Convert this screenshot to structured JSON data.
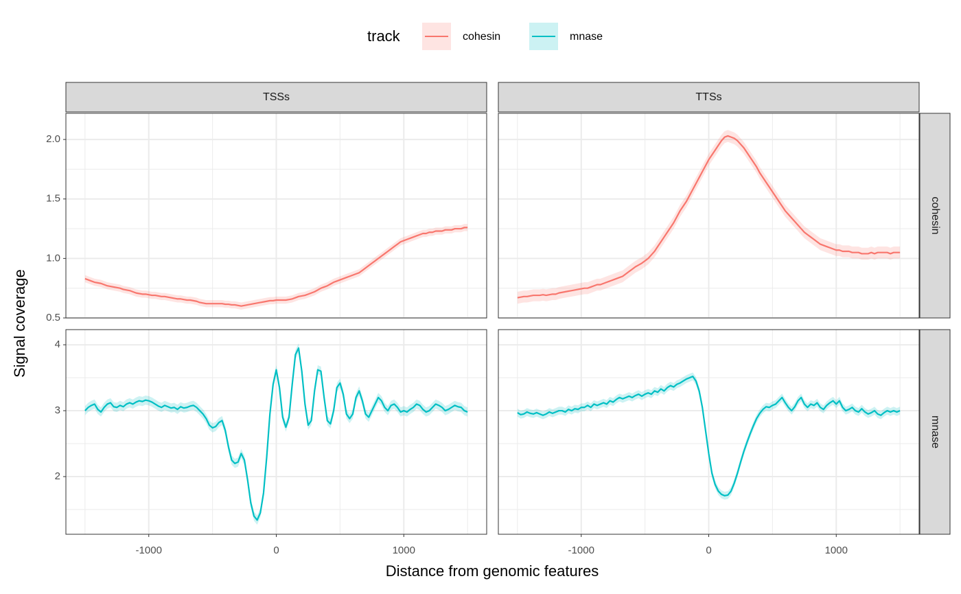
{
  "chart_data": {
    "type": "line",
    "legend_title": "track",
    "x_label": "Distance from genomic features",
    "y_label": "Signal coverage",
    "facets": [
      "TSSs",
      "TTSs"
    ],
    "x": [
      -1500,
      -1475,
      -1450,
      -1425,
      -1400,
      -1375,
      -1350,
      -1325,
      -1300,
      -1275,
      -1250,
      -1225,
      -1200,
      -1175,
      -1150,
      -1125,
      -1100,
      -1075,
      -1050,
      -1025,
      -1000,
      -975,
      -950,
      -925,
      -900,
      -875,
      -850,
      -825,
      -800,
      -775,
      -750,
      -725,
      -700,
      -675,
      -650,
      -625,
      -600,
      -575,
      -550,
      -525,
      -500,
      -475,
      -450,
      -425,
      -400,
      -375,
      -350,
      -325,
      -300,
      -275,
      -250,
      -225,
      -200,
      -175,
      -150,
      -125,
      -100,
      -75,
      -50,
      -25,
      0,
      25,
      50,
      75,
      100,
      125,
      150,
      175,
      200,
      225,
      250,
      275,
      300,
      325,
      350,
      375,
      400,
      425,
      450,
      475,
      500,
      525,
      550,
      575,
      600,
      625,
      650,
      675,
      700,
      725,
      750,
      775,
      800,
      825,
      850,
      875,
      900,
      925,
      950,
      975,
      1000,
      1025,
      1050,
      1075,
      1100,
      1125,
      1150,
      1175,
      1200,
      1225,
      1250,
      1275,
      1300,
      1325,
      1350,
      1375,
      1400,
      1425,
      1450,
      1475,
      1500
    ],
    "xlim": [
      -1650,
      1650
    ],
    "xticks": [
      -1000,
      0,
      1000
    ],
    "x_minor": [
      -1500,
      -500,
      500,
      1500
    ],
    "grid": true,
    "series": [
      {
        "name": "cohesin",
        "color": "#F8766D",
        "ylim": [
          0.5,
          2.22
        ],
        "yticks": [
          0.5,
          {
            "value": 1,
            "label": "1.0"
          },
          1.5,
          {
            "value": 2,
            "label": "2.0"
          }
        ],
        "y_minor": [
          0.75,
          1.25,
          1.75
        ],
        "se": [
          0.03,
          0.05
        ],
        "values": [
          [
            0.83,
            0.82,
            0.81,
            0.8,
            0.795,
            0.79,
            0.78,
            0.77,
            0.765,
            0.76,
            0.755,
            0.75,
            0.74,
            0.735,
            0.73,
            0.72,
            0.71,
            0.705,
            0.7,
            0.7,
            0.695,
            0.69,
            0.69,
            0.685,
            0.68,
            0.68,
            0.675,
            0.67,
            0.665,
            0.66,
            0.66,
            0.655,
            0.65,
            0.65,
            0.645,
            0.64,
            0.63,
            0.625,
            0.62,
            0.62,
            0.62,
            0.62,
            0.62,
            0.62,
            0.615,
            0.615,
            0.61,
            0.61,
            0.605,
            0.6,
            0.605,
            0.61,
            0.615,
            0.62,
            0.625,
            0.63,
            0.635,
            0.64,
            0.645,
            0.645,
            0.65,
            0.65,
            0.65,
            0.65,
            0.655,
            0.66,
            0.67,
            0.68,
            0.685,
            0.69,
            0.7,
            0.71,
            0.72,
            0.735,
            0.75,
            0.76,
            0.77,
            0.785,
            0.8,
            0.81,
            0.82,
            0.83,
            0.84,
            0.85,
            0.86,
            0.87,
            0.88,
            0.9,
            0.92,
            0.94,
            0.96,
            0.98,
            1.0,
            1.02,
            1.04,
            1.06,
            1.08,
            1.1,
            1.12,
            1.14,
            1.15,
            1.16,
            1.17,
            1.18,
            1.19,
            1.2,
            1.21,
            1.21,
            1.22,
            1.22,
            1.23,
            1.23,
            1.23,
            1.24,
            1.24,
            1.24,
            1.25,
            1.25,
            1.25,
            1.26,
            1.26
          ],
          [
            0.67,
            0.675,
            0.68,
            0.68,
            0.685,
            0.69,
            0.69,
            0.69,
            0.695,
            0.69,
            0.695,
            0.7,
            0.7,
            0.71,
            0.715,
            0.72,
            0.725,
            0.73,
            0.735,
            0.74,
            0.745,
            0.75,
            0.75,
            0.76,
            0.77,
            0.78,
            0.78,
            0.79,
            0.8,
            0.81,
            0.82,
            0.83,
            0.84,
            0.85,
            0.87,
            0.89,
            0.91,
            0.93,
            0.945,
            0.96,
            0.98,
            1.0,
            1.03,
            1.06,
            1.1,
            1.14,
            1.18,
            1.22,
            1.26,
            1.3,
            1.35,
            1.4,
            1.44,
            1.48,
            1.53,
            1.58,
            1.63,
            1.68,
            1.73,
            1.78,
            1.83,
            1.87,
            1.91,
            1.95,
            1.99,
            2.02,
            2.03,
            2.02,
            2.01,
            1.99,
            1.96,
            1.93,
            1.89,
            1.85,
            1.81,
            1.77,
            1.72,
            1.68,
            1.64,
            1.6,
            1.56,
            1.52,
            1.48,
            1.44,
            1.4,
            1.37,
            1.34,
            1.31,
            1.28,
            1.25,
            1.22,
            1.2,
            1.18,
            1.16,
            1.14,
            1.12,
            1.11,
            1.1,
            1.09,
            1.08,
            1.07,
            1.07,
            1.06,
            1.06,
            1.06,
            1.05,
            1.05,
            1.05,
            1.04,
            1.04,
            1.04,
            1.05,
            1.04,
            1.05,
            1.05,
            1.05,
            1.05,
            1.04,
            1.05,
            1.05,
            1.05
          ]
        ]
      },
      {
        "name": "mnase",
        "color": "#00BFC4",
        "ylim": [
          1.125,
          4.23
        ],
        "yticks": [
          2,
          3,
          4
        ],
        "y_minor": [
          1.5,
          2.5,
          3.5
        ],
        "se": [
          0.07,
          0.06
        ],
        "values": [
          [
            3.0,
            3.05,
            3.08,
            3.1,
            3.02,
            2.98,
            3.05,
            3.1,
            3.12,
            3.06,
            3.05,
            3.08,
            3.06,
            3.1,
            3.12,
            3.1,
            3.13,
            3.15,
            3.14,
            3.16,
            3.15,
            3.13,
            3.1,
            3.07,
            3.05,
            3.08,
            3.06,
            3.04,
            3.05,
            3.02,
            3.06,
            3.04,
            3.05,
            3.07,
            3.08,
            3.05,
            3.0,
            2.95,
            2.88,
            2.78,
            2.74,
            2.76,
            2.82,
            2.85,
            2.7,
            2.45,
            2.25,
            2.2,
            2.22,
            2.35,
            2.25,
            1.95,
            1.6,
            1.4,
            1.34,
            1.45,
            1.75,
            2.3,
            2.95,
            3.4,
            3.62,
            3.35,
            2.9,
            2.75,
            2.9,
            3.4,
            3.85,
            3.95,
            3.6,
            3.1,
            2.78,
            2.85,
            3.3,
            3.62,
            3.6,
            3.2,
            2.85,
            2.8,
            3.0,
            3.35,
            3.42,
            3.25,
            2.95,
            2.88,
            2.95,
            3.2,
            3.3,
            3.15,
            2.95,
            2.9,
            3.0,
            3.1,
            3.2,
            3.15,
            3.05,
            3.0,
            3.08,
            3.1,
            3.05,
            2.98,
            3.0,
            2.98,
            3.02,
            3.05,
            3.1,
            3.08,
            3.02,
            2.98,
            3.0,
            3.05,
            3.1,
            3.08,
            3.05,
            3.0,
            3.02,
            3.05,
            3.08,
            3.06,
            3.05,
            3.0,
            2.98
          ],
          [
            2.97,
            2.94,
            2.95,
            2.98,
            2.96,
            2.95,
            2.97,
            2.95,
            2.93,
            2.95,
            2.98,
            2.96,
            2.98,
            3.0,
            3.0,
            2.98,
            3.02,
            3.0,
            3.03,
            3.02,
            3.05,
            3.05,
            3.08,
            3.05,
            3.1,
            3.08,
            3.1,
            3.12,
            3.1,
            3.15,
            3.13,
            3.17,
            3.2,
            3.18,
            3.2,
            3.22,
            3.2,
            3.23,
            3.25,
            3.22,
            3.25,
            3.27,
            3.25,
            3.3,
            3.28,
            3.33,
            3.3,
            3.35,
            3.38,
            3.36,
            3.4,
            3.42,
            3.45,
            3.48,
            3.5,
            3.52,
            3.45,
            3.3,
            3.05,
            2.7,
            2.35,
            2.05,
            1.88,
            1.78,
            1.73,
            1.71,
            1.72,
            1.78,
            1.9,
            2.05,
            2.22,
            2.38,
            2.52,
            2.65,
            2.77,
            2.88,
            2.96,
            3.02,
            3.06,
            3.05,
            3.08,
            3.1,
            3.15,
            3.2,
            3.12,
            3.05,
            3.0,
            3.06,
            3.15,
            3.2,
            3.1,
            3.05,
            3.1,
            3.08,
            3.12,
            3.05,
            3.02,
            3.08,
            3.12,
            3.15,
            3.1,
            3.15,
            3.05,
            3.0,
            3.02,
            3.05,
            3.0,
            2.98,
            3.03,
            2.98,
            2.95,
            2.97,
            3.0,
            2.95,
            2.93,
            2.97,
            3.0,
            2.98,
            3.0,
            2.98,
            3.0
          ]
        ]
      }
    ]
  }
}
